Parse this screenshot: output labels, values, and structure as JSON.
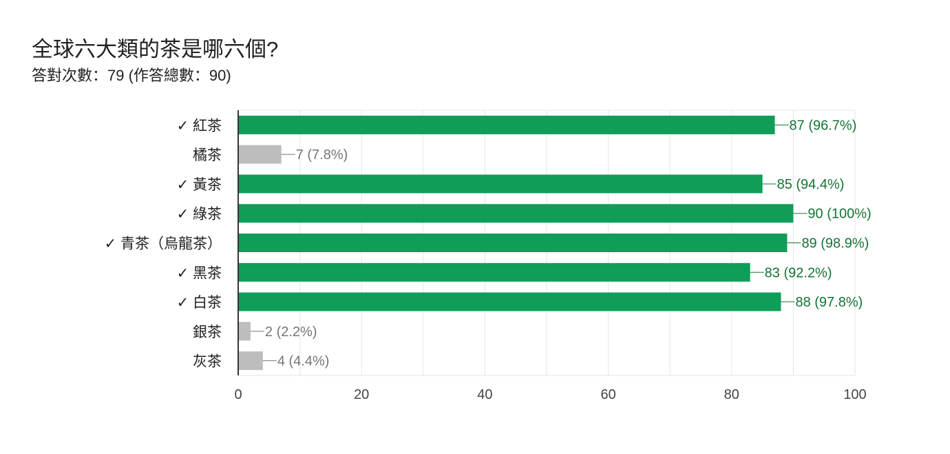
{
  "question": {
    "title": "全球六大類的茶是哪六個?",
    "summary": "答對次數：79 (作答總數：90)"
  },
  "colors": {
    "correct": "#0f9d58",
    "correct_label": "#137333",
    "incorrect": "#bdbdbd",
    "incorrect_label": "#757575",
    "grid": "#e6e6e6",
    "axis": "#333333"
  },
  "chart_data": {
    "type": "bar",
    "orientation": "horizontal",
    "categories": [
      "✓ 紅茶",
      "橘茶",
      "✓ 黃茶",
      "✓ 綠茶",
      "✓ 青茶（烏龍茶）",
      "✓ 黑茶",
      "✓ 白茶",
      "銀茶",
      "灰茶"
    ],
    "values": [
      87,
      7,
      85,
      90,
      89,
      83,
      88,
      2,
      4
    ],
    "correct": [
      true,
      false,
      true,
      true,
      true,
      true,
      true,
      false,
      false
    ],
    "data_labels": [
      "87 (96.7%)",
      "7 (7.8%)",
      "85 (94.4%)",
      "90 (100%)",
      "89 (98.9%)",
      "83 (92.2%)",
      "88 (97.8%)",
      "2 (2.2%)",
      "4 (4.4%)"
    ],
    "xlim": [
      0,
      100
    ],
    "xticks": [
      "0",
      "20",
      "40",
      "60",
      "80",
      "100"
    ],
    "grid": true
  }
}
